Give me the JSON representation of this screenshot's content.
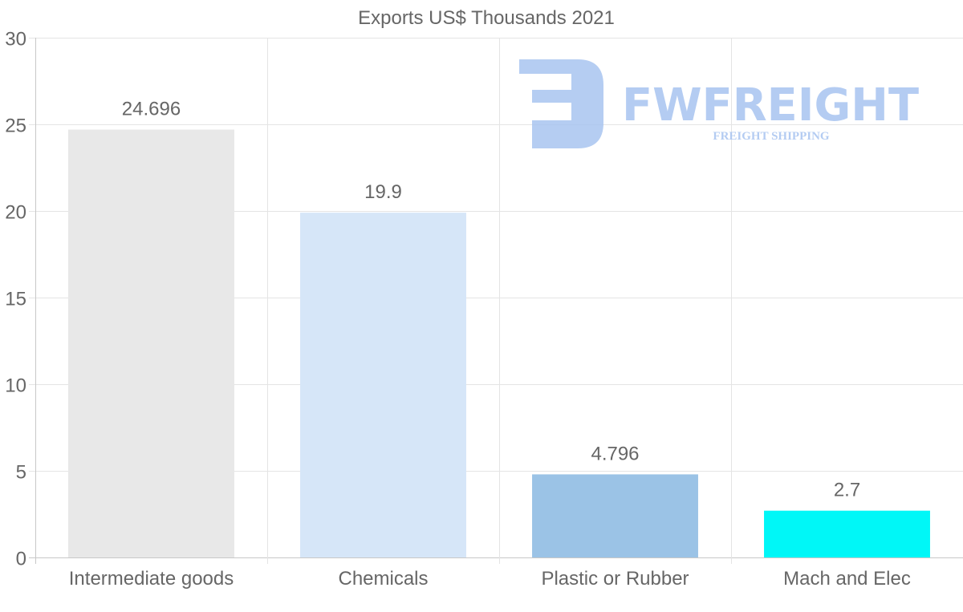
{
  "chart_data": {
    "type": "bar",
    "title": "Exports US$ Thousands 2021",
    "categories": [
      "Intermediate goods",
      "Chemicals",
      "Plastic or Rubber",
      "Mach and Elec"
    ],
    "values": [
      24.696,
      19.9,
      4.796,
      2.7
    ],
    "value_labels": [
      "24.696",
      "19.9",
      "4.796",
      "2.7"
    ],
    "colors": [
      "#e8e8e8",
      "#d6e6f8",
      "#9bc3e6",
      "#00f7f7"
    ],
    "xlabel": "",
    "ylabel": "",
    "ylim": [
      0,
      30
    ],
    "yticks": [
      "0",
      "5",
      "10",
      "15",
      "20",
      "25",
      "30"
    ],
    "grid": true,
    "legend": "none"
  },
  "watermark": {
    "brand": "FWFREIGHT",
    "tagline": "FREIGHT SHIPPING",
    "color": "#a8c4f0"
  }
}
